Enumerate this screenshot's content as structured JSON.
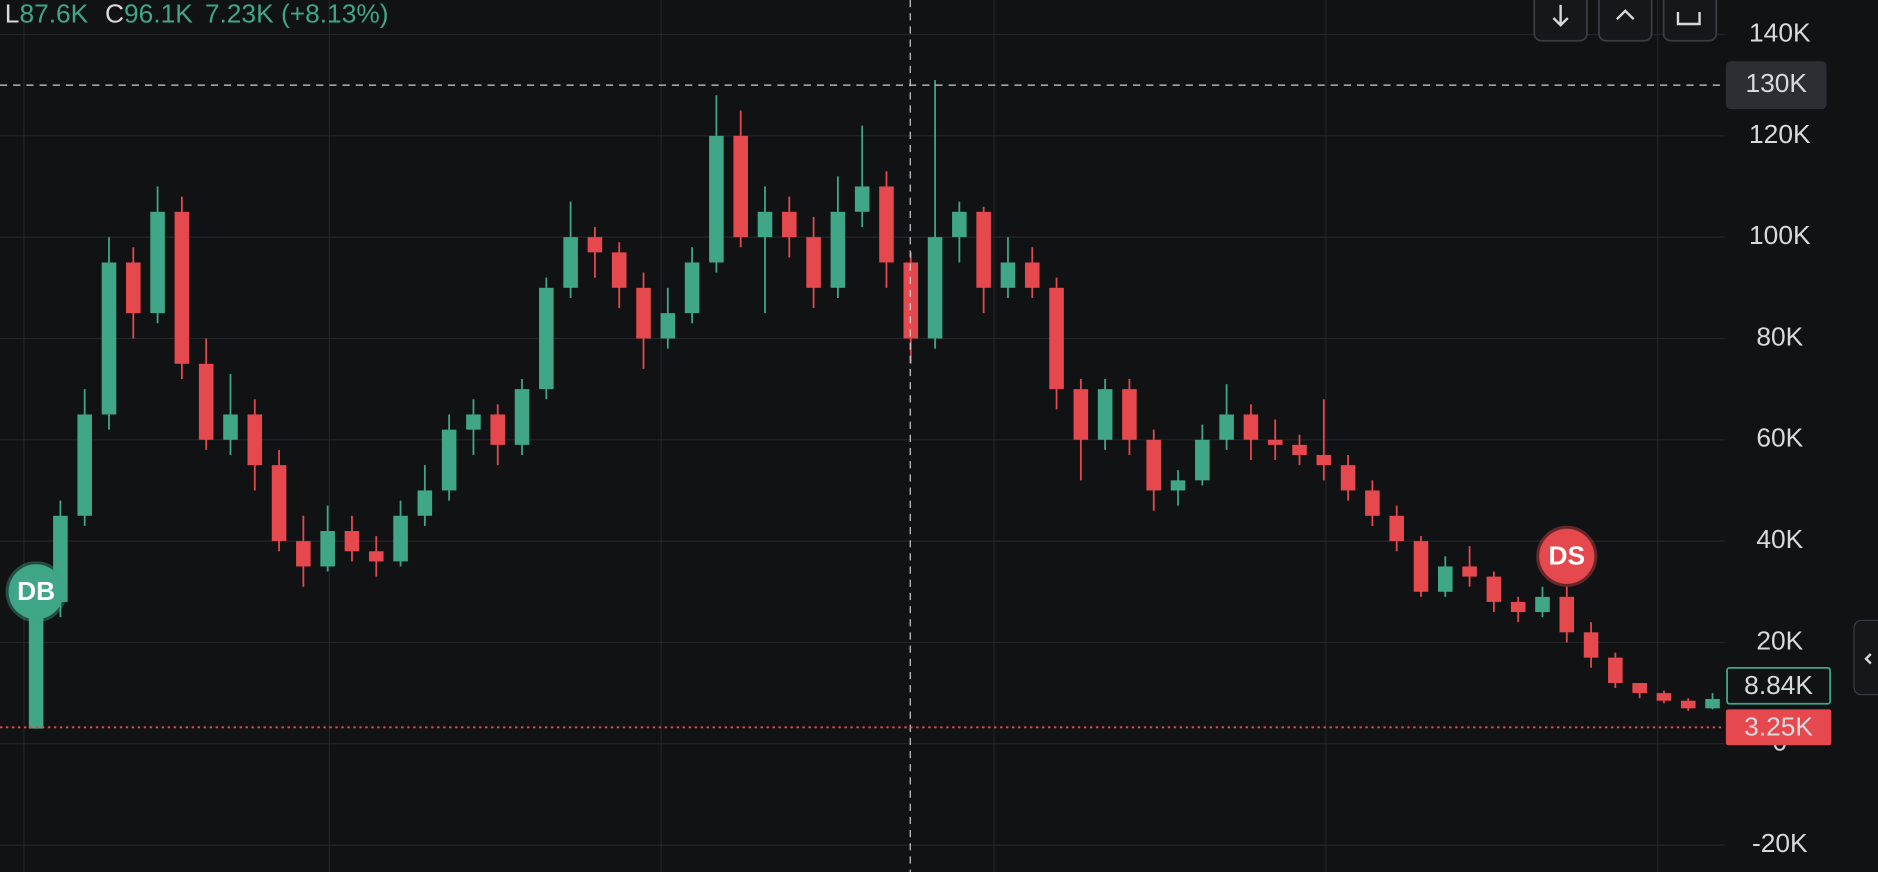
{
  "chart_data": {
    "type": "candlestick",
    "legend": [
      "L",
      "87.6K",
      "C",
      "96.1K",
      "7.23K (+8.13%)"
    ],
    "up_color": "#3fa687",
    "down_color": "#e5484d",
    "ylim": [
      -25.3,
      146.8
    ],
    "yticks": [
      {
        "value": 140,
        "label": "140K"
      },
      {
        "value": 120,
        "label": "120K"
      },
      {
        "value": 100,
        "label": "100K"
      },
      {
        "value": 80,
        "label": "80K"
      },
      {
        "value": 60,
        "label": "60K"
      },
      {
        "value": 40,
        "label": "40K"
      },
      {
        "value": 20,
        "label": "20K"
      },
      0,
      {
        "value": -20,
        "label": "-20K"
      }
    ],
    "grid": true,
    "ohlc": [
      [
        3,
        32,
        3,
        28
      ],
      [
        28,
        48,
        25,
        45
      ],
      [
        45,
        70,
        43,
        65
      ],
      [
        65,
        100,
        62,
        95
      ],
      [
        95,
        98,
        80,
        85
      ],
      [
        85,
        110,
        83,
        105
      ],
      [
        105,
        108,
        72,
        75
      ],
      [
        75,
        80,
        58,
        60
      ],
      [
        60,
        73,
        57,
        65
      ],
      [
        65,
        68,
        50,
        55
      ],
      [
        55,
        58,
        38,
        40
      ],
      [
        40,
        45,
        31,
        35
      ],
      [
        35,
        47,
        34,
        42
      ],
      [
        42,
        45,
        36,
        38
      ],
      [
        38,
        41,
        33,
        36
      ],
      [
        36,
        48,
        35,
        45
      ],
      [
        45,
        55,
        43,
        50
      ],
      [
        50,
        65,
        48,
        62
      ],
      [
        62,
        68,
        57,
        65
      ],
      [
        65,
        67,
        55,
        59
      ],
      [
        59,
        72,
        57,
        70
      ],
      [
        70,
        92,
        68,
        90
      ],
      [
        90,
        107,
        88,
        100
      ],
      [
        100,
        102,
        92,
        97
      ],
      [
        97,
        99,
        86,
        90
      ],
      [
        90,
        93,
        74,
        80
      ],
      [
        80,
        90,
        78,
        85
      ],
      [
        85,
        98,
        83,
        95
      ],
      [
        95,
        128,
        93,
        120
      ],
      [
        120,
        125,
        98,
        100
      ],
      [
        100,
        110,
        85,
        105
      ],
      [
        105,
        108,
        96,
        100
      ],
      [
        100,
        104,
        86,
        90
      ],
      [
        90,
        112,
        88,
        105
      ],
      [
        105,
        122,
        102,
        110
      ],
      [
        110,
        113,
        90,
        95
      ],
      [
        95,
        97,
        75,
        80
      ],
      [
        80,
        131,
        78,
        100
      ],
      [
        100,
        107,
        95,
        105
      ],
      [
        105,
        106,
        85,
        90
      ],
      [
        90,
        100,
        88,
        95
      ],
      [
        95,
        98,
        88,
        90
      ],
      [
        90,
        92,
        66,
        70
      ],
      [
        70,
        72,
        52,
        60
      ],
      [
        60,
        72,
        58,
        70
      ],
      [
        70,
        72,
        57,
        60
      ],
      [
        60,
        62,
        46,
        50
      ],
      [
        50,
        54,
        47,
        52
      ],
      [
        52,
        63,
        51,
        60
      ],
      [
        60,
        71,
        58,
        65
      ],
      [
        65,
        67,
        56,
        60
      ],
      [
        60,
        64,
        56,
        59
      ],
      [
        59,
        61,
        55,
        57
      ],
      [
        57,
        68,
        52,
        55
      ],
      [
        55,
        57,
        48,
        50
      ],
      [
        50,
        52,
        43,
        45
      ],
      [
        45,
        47,
        38,
        40
      ],
      [
        40,
        41,
        29,
        30
      ],
      [
        30,
        37,
        29,
        35
      ],
      [
        35,
        39,
        31,
        33
      ],
      [
        33,
        34,
        26,
        28
      ],
      [
        28,
        29,
        24,
        26
      ],
      [
        26,
        31,
        25,
        29
      ],
      [
        29,
        31,
        20,
        22
      ],
      [
        22,
        24,
        15,
        17
      ],
      [
        17,
        18,
        11,
        12
      ],
      [
        12,
        12,
        9,
        10
      ],
      [
        10,
        10.5,
        8,
        8.5
      ],
      [
        8.5,
        9,
        6.5,
        7
      ],
      [
        7,
        10,
        6.8,
        8.84
      ]
    ],
    "crosshair": {
      "value": 130,
      "label": "130K"
    },
    "last_price": {
      "value": 8.84,
      "label": "8.84K"
    },
    "price_line": {
      "value": 3.25,
      "label": "3.25K"
    },
    "markers": [
      {
        "label": "DB",
        "index": 0,
        "value": 30,
        "color": "#3fa687"
      },
      {
        "label": "DS",
        "index": 63,
        "value": 37,
        "color": "#e5484d"
      }
    ]
  }
}
